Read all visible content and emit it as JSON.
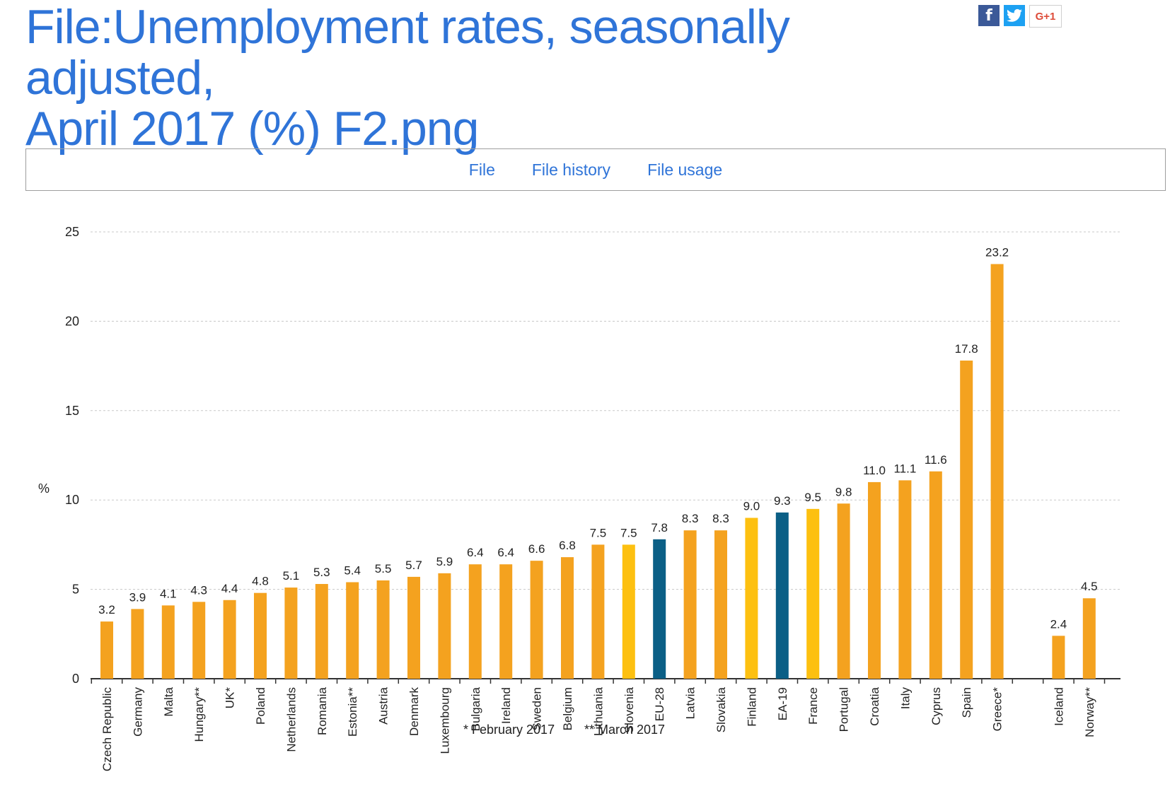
{
  "page": {
    "title_line1": "File:Unemployment rates, seasonally adjusted,",
    "title_line2": "April 2017 (%) F2.png"
  },
  "social": {
    "facebook": "f",
    "google_plus": "G+1"
  },
  "tabs": [
    {
      "label": "File"
    },
    {
      "label": "File history"
    },
    {
      "label": "File usage"
    }
  ],
  "chart_data": {
    "type": "bar",
    "ylabel": "%",
    "ylim": [
      0,
      25
    ],
    "yticks": [
      0,
      5,
      10,
      15,
      20,
      25
    ],
    "grid": true,
    "categories": [
      "Czech Republic",
      "Germany",
      "Malta",
      "Hungary**",
      "UK*",
      "Poland",
      "Netherlands",
      "Romania",
      "Estonia**",
      "Austria",
      "Denmark",
      "Luxembourg",
      "Bulgaria",
      "Ireland",
      "Sweden",
      "Belgium",
      "Lithuania",
      "Slovenia",
      "EU-28",
      "Latvia",
      "Slovakia",
      "Finland",
      "EA-19",
      "France",
      "Portugal",
      "Croatia",
      "Italy",
      "Cyprus",
      "Spain",
      "Greece*",
      "Iceland",
      "Norway**"
    ],
    "values": [
      3.2,
      3.9,
      4.1,
      4.3,
      4.4,
      4.8,
      5.1,
      5.3,
      5.4,
      5.5,
      5.7,
      5.9,
      6.4,
      6.4,
      6.6,
      6.8,
      7.5,
      7.5,
      7.8,
      8.3,
      8.3,
      9.0,
      9.3,
      9.5,
      9.8,
      11.0,
      11.1,
      11.6,
      17.8,
      23.2,
      2.4,
      4.5
    ],
    "value_labels": [
      "3.2",
      "3.9",
      "4.1",
      "4.3",
      "4.4",
      "4.8",
      "5.1",
      "5.3",
      "5.4",
      "5.5",
      "5.7",
      "5.9",
      "6.4",
      "6.4",
      "6.6",
      "6.8",
      "7.5",
      "7.5",
      "7.8",
      "8.3",
      "8.3",
      "9.0",
      "9.3",
      "9.5",
      "9.8",
      "11.0",
      "11.1",
      "11.6",
      "17.8",
      "23.2",
      "2.4",
      "4.5"
    ],
    "bar_colors": [
      "orange",
      "orange",
      "orange",
      "orange",
      "orange",
      "orange",
      "orange",
      "orange",
      "orange",
      "orange",
      "orange",
      "orange",
      "orange",
      "orange",
      "orange",
      "orange",
      "orange",
      "yellow",
      "blue",
      "orange",
      "orange",
      "yellow",
      "blue",
      "yellow",
      "orange",
      "orange",
      "orange",
      "orange",
      "orange",
      "orange",
      "orange",
      "orange"
    ],
    "colors": {
      "orange": "#f4a21f",
      "yellow": "#fdc010",
      "blue": "#0b5f86"
    },
    "footnotes": [
      "* February 2017",
      "** March 2017"
    ]
  }
}
